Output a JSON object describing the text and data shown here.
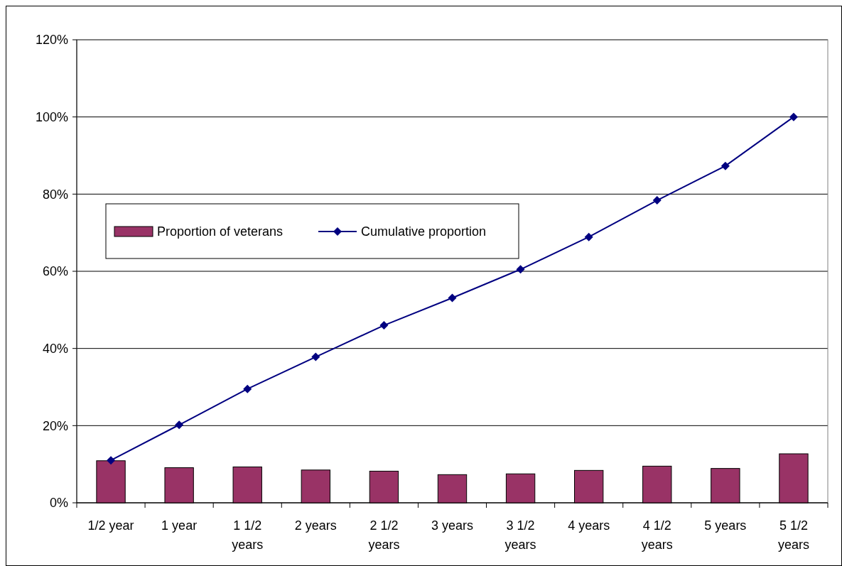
{
  "chart_data": {
    "type": "bar",
    "categories": [
      "1/2 year",
      "1 year",
      "1 1/2 years",
      "2 years",
      "2 1/2 years",
      "3 years",
      "3 1/2 years",
      "4 years",
      "4 1/2 years",
      "5 years",
      "5 1/2 years"
    ],
    "series": [
      {
        "name": "Proportion of veterans",
        "color": "#993366",
        "values": [
          10.9,
          9.1,
          9.3,
          8.5,
          8.2,
          7.3,
          7.5,
          8.4,
          9.5,
          8.9,
          12.7
        ]
      },
      {
        "name": "Cumulative proportion",
        "type": "line",
        "color": "#000080",
        "marker": "diamond",
        "values": [
          11,
          20.2,
          29.5,
          37.8,
          46,
          53.1,
          60.5,
          68.9,
          78.4,
          87.3,
          100
        ]
      }
    ],
    "ylim": [
      0,
      120
    ],
    "yticks": [
      {
        "value": 0,
        "label": "0%"
      },
      {
        "value": 20,
        "label": "20%"
      },
      {
        "value": 40,
        "label": "40%"
      },
      {
        "value": 60,
        "label": "60%"
      },
      {
        "value": 80,
        "label": "80%"
      },
      {
        "value": 100,
        "label": "100%"
      },
      {
        "value": 120,
        "label": "120%"
      }
    ],
    "grid": "y",
    "legend": "left"
  }
}
